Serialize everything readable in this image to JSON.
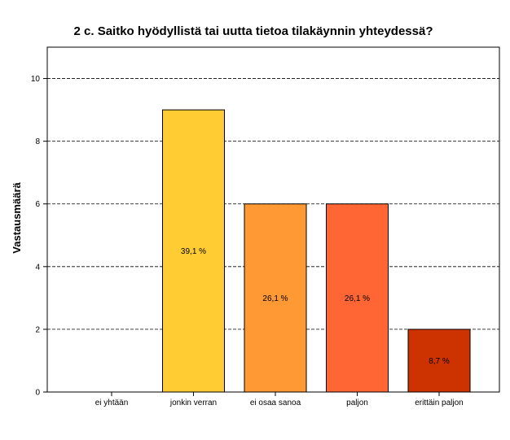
{
  "chart_data": {
    "type": "bar",
    "title": "2 c. Saitko hyödyllistä tai uutta tietoa tilakäynnin yhteydessä?",
    "xlabel": "",
    "ylabel": "Vastausmäärä",
    "categories": [
      "ei yhtään",
      "jonkin verran",
      "ei osaa sanoa",
      "paljon",
      "erittäin paljon"
    ],
    "values": [
      0,
      9,
      6,
      6,
      2
    ],
    "data_labels": [
      "",
      "39,1 %",
      "26,1 %",
      "26,1 %",
      "8,7 %"
    ],
    "colors": [
      "#ffcc33",
      "#ffcc33",
      "#ff9933",
      "#ff6633",
      "#cc3300"
    ],
    "ylim": [
      0,
      11
    ],
    "yticks": [
      0,
      2,
      4,
      6,
      8,
      10
    ],
    "grid": true,
    "legend": false
  }
}
